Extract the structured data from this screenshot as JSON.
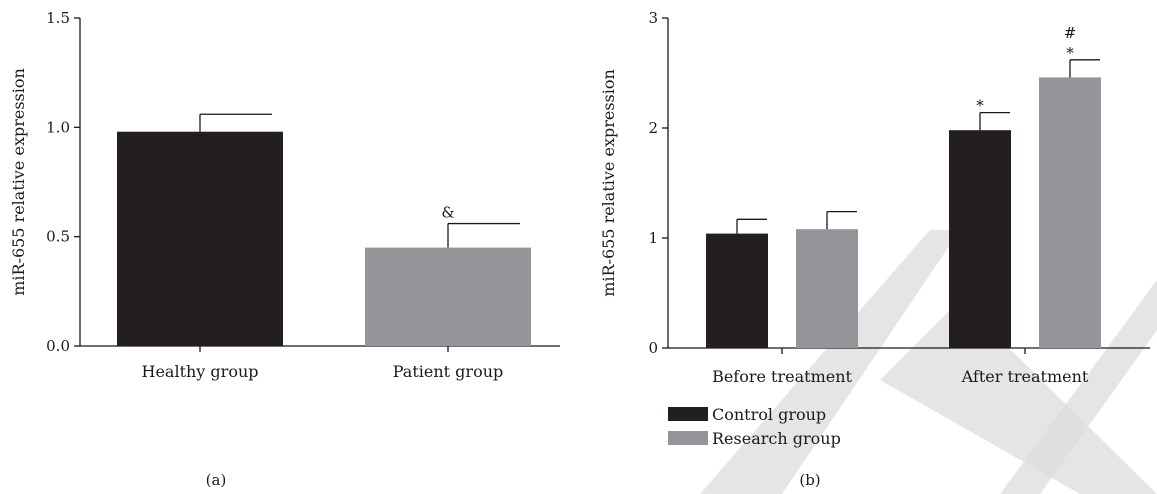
{
  "colors": {
    "dark": "#231f20",
    "gray": "#939598",
    "watermark": "#dcdcdc"
  },
  "chart_data": [
    {
      "type": "bar",
      "panel_label": "(a)",
      "ylabel": "miR-655 relative expression",
      "ylim": [
        0,
        1.5
      ],
      "yticks": [
        "0.0",
        "0.5",
        "1.0",
        "1.5"
      ],
      "categories": [
        "Healthy group",
        "Patient group"
      ],
      "values": [
        0.98,
        0.45
      ],
      "errors": [
        0.08,
        0.11
      ],
      "bar_colors": [
        "#231f20",
        "#939598"
      ],
      "annotations": [
        "",
        "&"
      ]
    },
    {
      "type": "bar",
      "panel_label": "(b)",
      "ylabel": "miR-655 relative expression",
      "ylim": [
        0,
        3
      ],
      "yticks": [
        "0",
        "1",
        "2",
        "3"
      ],
      "categories": [
        "Before treatment",
        "After treatment"
      ],
      "series": [
        {
          "name": "Control group",
          "color": "#231f20",
          "values": [
            1.04,
            1.98
          ],
          "errors": [
            0.13,
            0.16
          ],
          "annotations": [
            "",
            "*"
          ]
        },
        {
          "name": "Research group",
          "color": "#939598",
          "values": [
            1.08,
            2.46
          ],
          "errors": [
            0.16,
            0.16
          ],
          "annotations": [
            "",
            "*"
          ],
          "annotations2": [
            "",
            "#"
          ]
        }
      ],
      "legend_position": "bottom-left"
    }
  ]
}
